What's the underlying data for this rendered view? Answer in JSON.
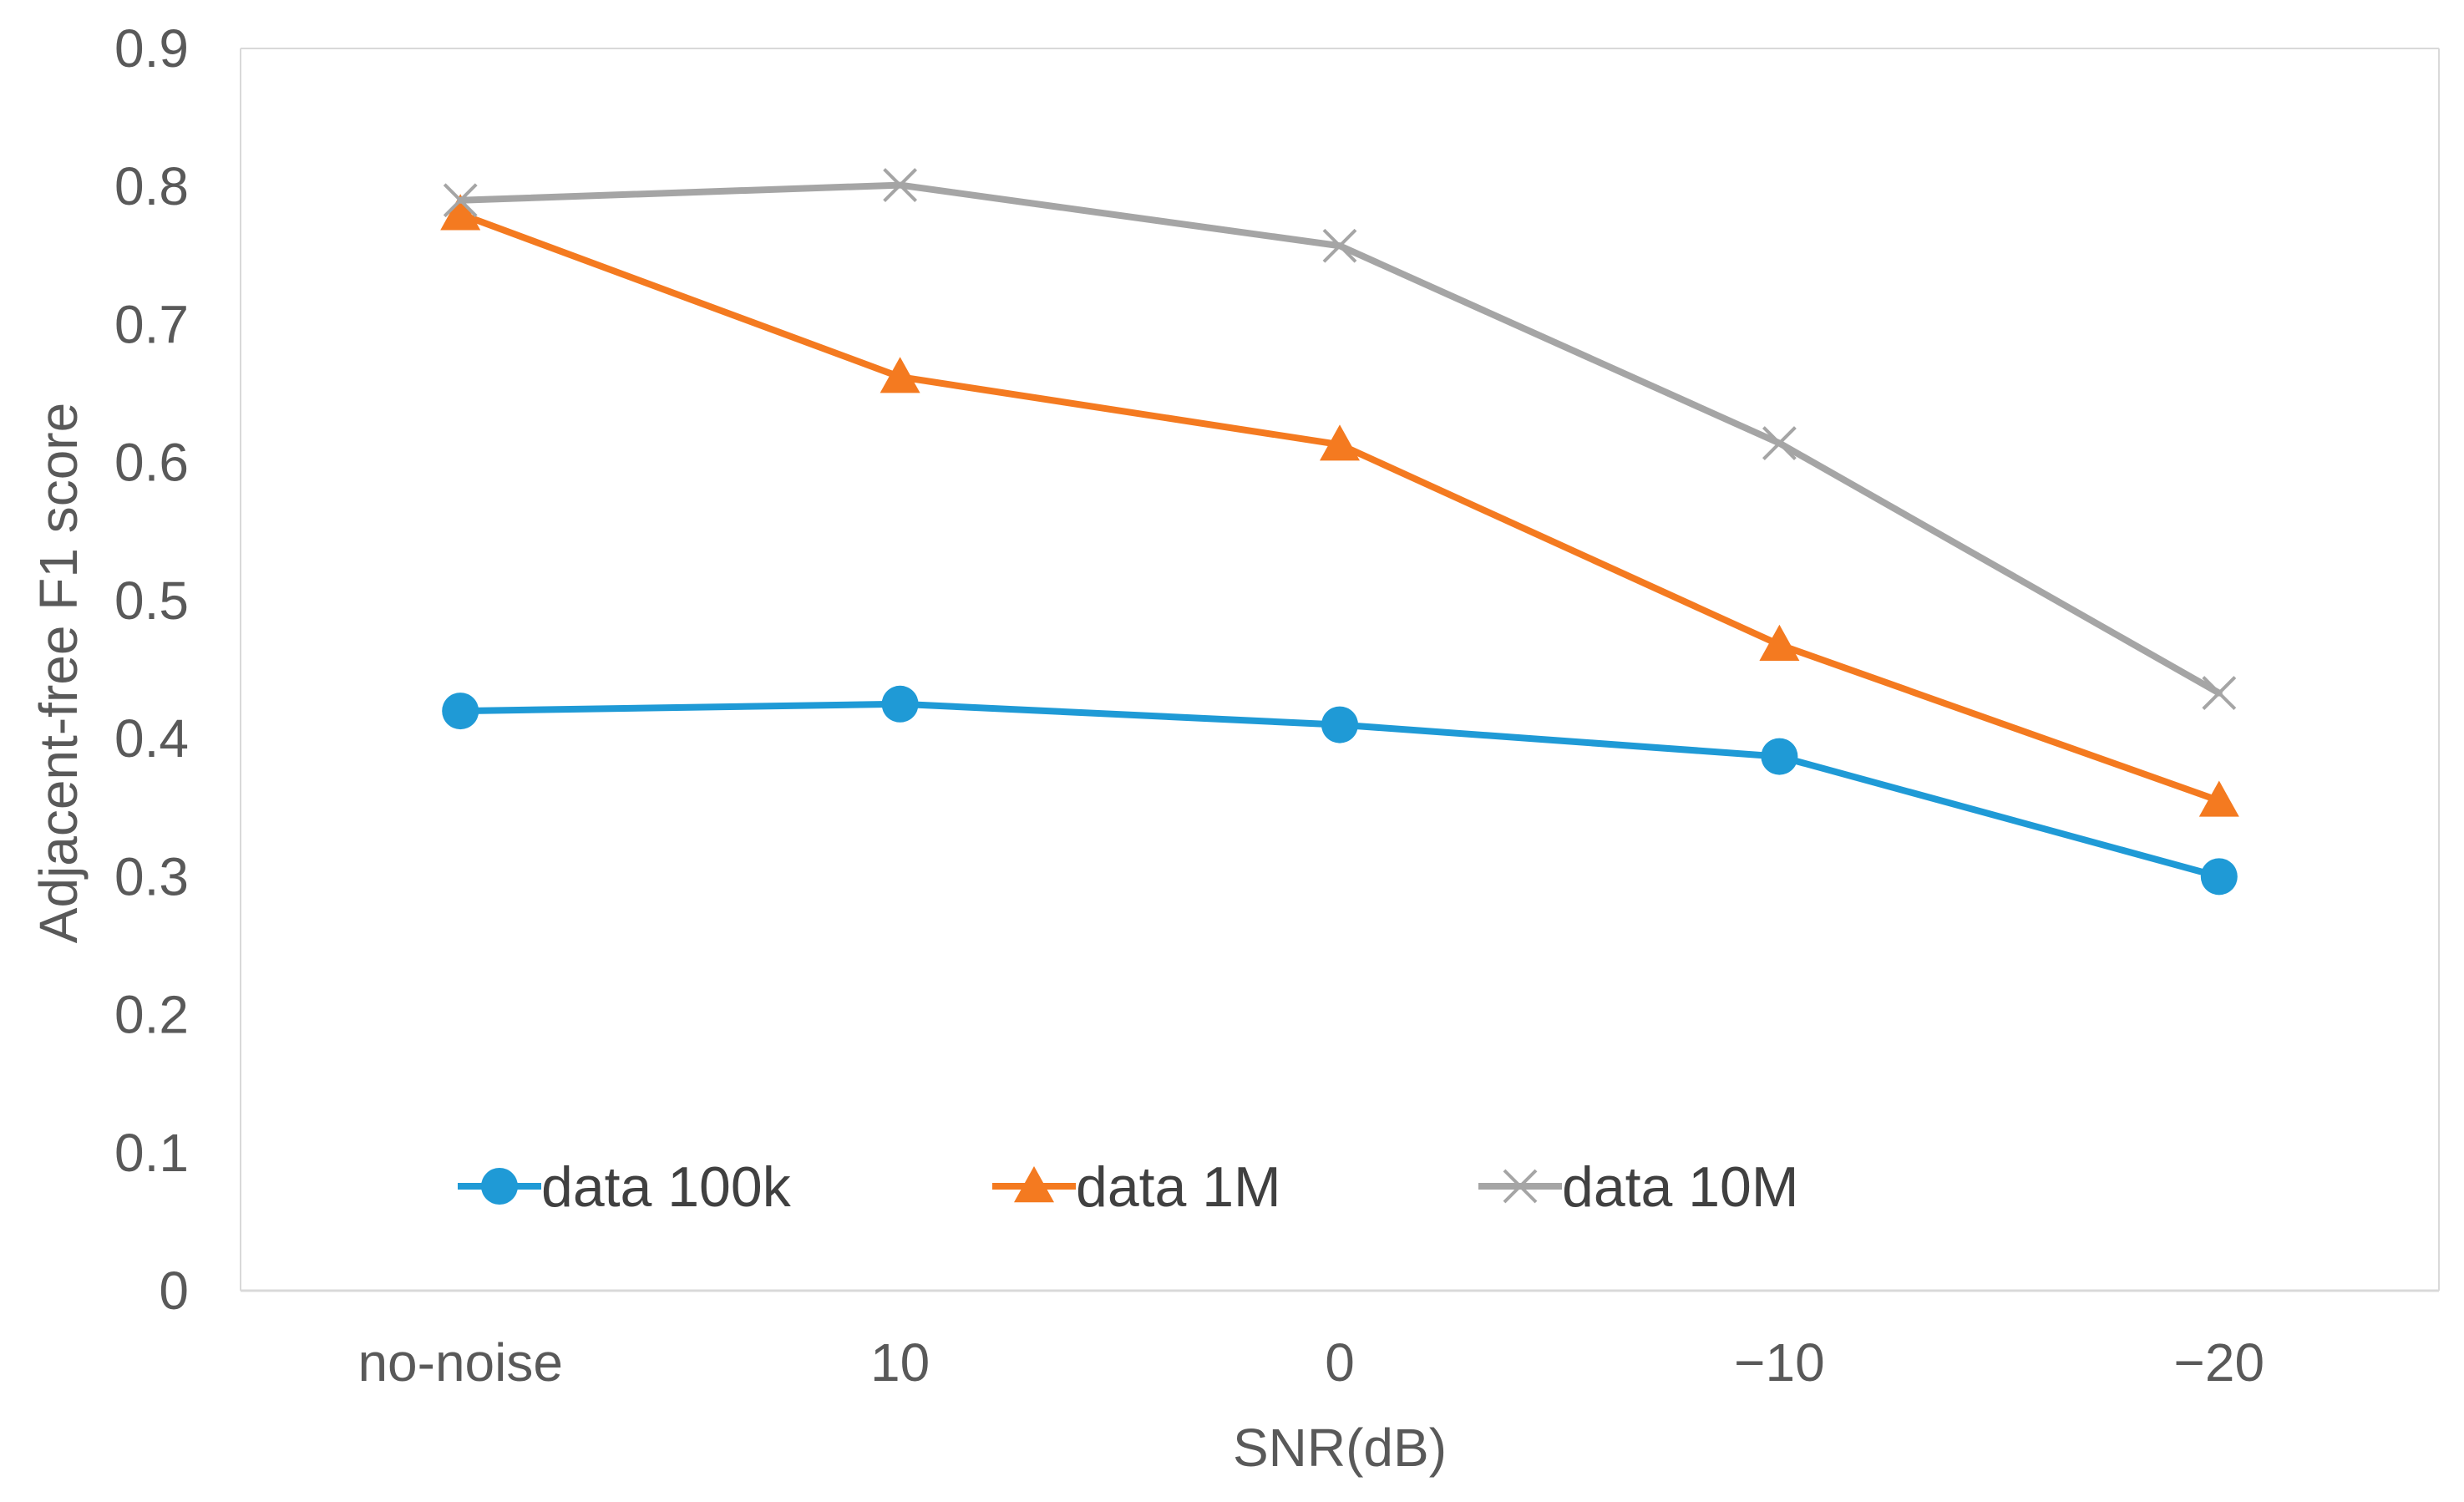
{
  "chart_data": {
    "type": "line",
    "title": "",
    "xlabel": "SNR(dB)",
    "ylabel": "Adjacent-free F1 score",
    "categories": [
      "no-noise",
      "10",
      "0",
      "−10",
      "−20"
    ],
    "yticks": [
      "0",
      "0.1",
      "0.2",
      "0.3",
      "0.4",
      "0.5",
      "0.6",
      "0.7",
      "0.8",
      "0.9"
    ],
    "ylim": [
      0,
      0.9
    ],
    "grid": false,
    "legend_position": "bottom-inside",
    "series": [
      {
        "name": "data 100k",
        "values": [
          0.42,
          0.425,
          0.41,
          0.387,
          0.3
        ],
        "color": "#1f9ad6",
        "marker": "circle"
      },
      {
        "name": "data 1M",
        "values": [
          0.78,
          0.662,
          0.613,
          0.468,
          0.355
        ],
        "color": "#f47a20",
        "marker": "triangle"
      },
      {
        "name": "data 10M",
        "values": [
          0.79,
          0.801,
          0.757,
          0.614,
          0.433
        ],
        "color": "#a5a5a5",
        "marker": "x"
      }
    ]
  }
}
